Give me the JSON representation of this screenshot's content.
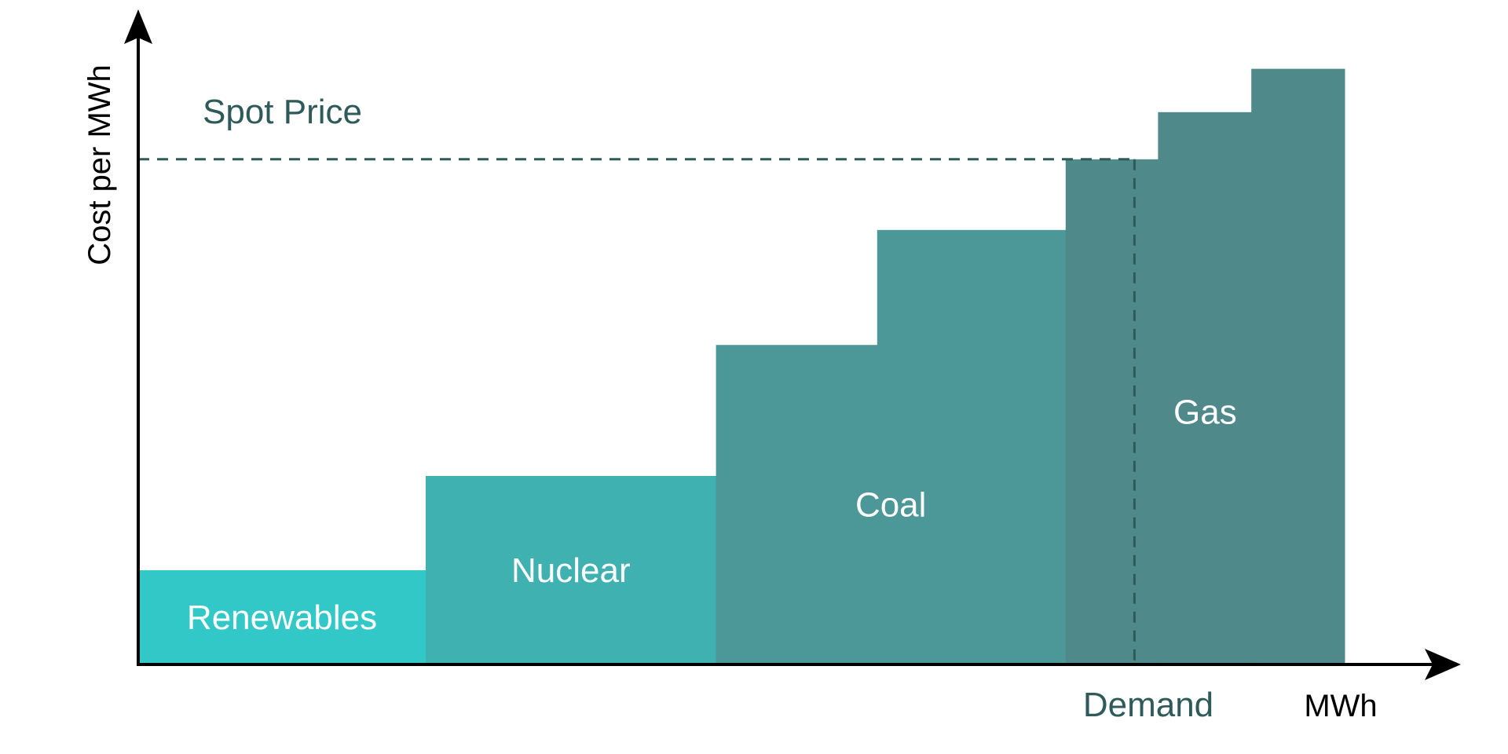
{
  "chart_data": {
    "type": "bar",
    "subtype": "merit-order-stepped",
    "xlabel": "MWh",
    "ylabel": "Cost per MWh",
    "spot_price_label": "Spot Price",
    "demand_label": "Demand",
    "sources": [
      {
        "label": "Renewables",
        "color": "#33c8c8",
        "steps": [
          {
            "x0": 0,
            "x1": 305,
            "cost": 100
          }
        ]
      },
      {
        "label": "Nuclear",
        "color": "#40b1b1",
        "steps": [
          {
            "x0": 305,
            "x1": 613,
            "cost": 200
          }
        ]
      },
      {
        "label": "Coal",
        "color": "#4c9898",
        "steps": [
          {
            "x0": 613,
            "x1": 784,
            "cost": 339
          },
          {
            "x0": 784,
            "x1": 984,
            "cost": 461
          }
        ]
      },
      {
        "label": "Gas",
        "color": "#508989",
        "steps": [
          {
            "x0": 984,
            "x1": 1082,
            "cost": 536
          },
          {
            "x0": 1082,
            "x1": 1181,
            "cost": 586
          },
          {
            "x0": 1181,
            "x1": 1280,
            "cost": 632
          }
        ]
      }
    ],
    "spot_price": 536,
    "demand": 1057,
    "xlim": [
      0,
      1380
    ],
    "ylim": [
      0,
      680
    ],
    "grid": false,
    "legend": "none",
    "axis_color": "#000000",
    "marker_color": "#2f5a5a"
  }
}
